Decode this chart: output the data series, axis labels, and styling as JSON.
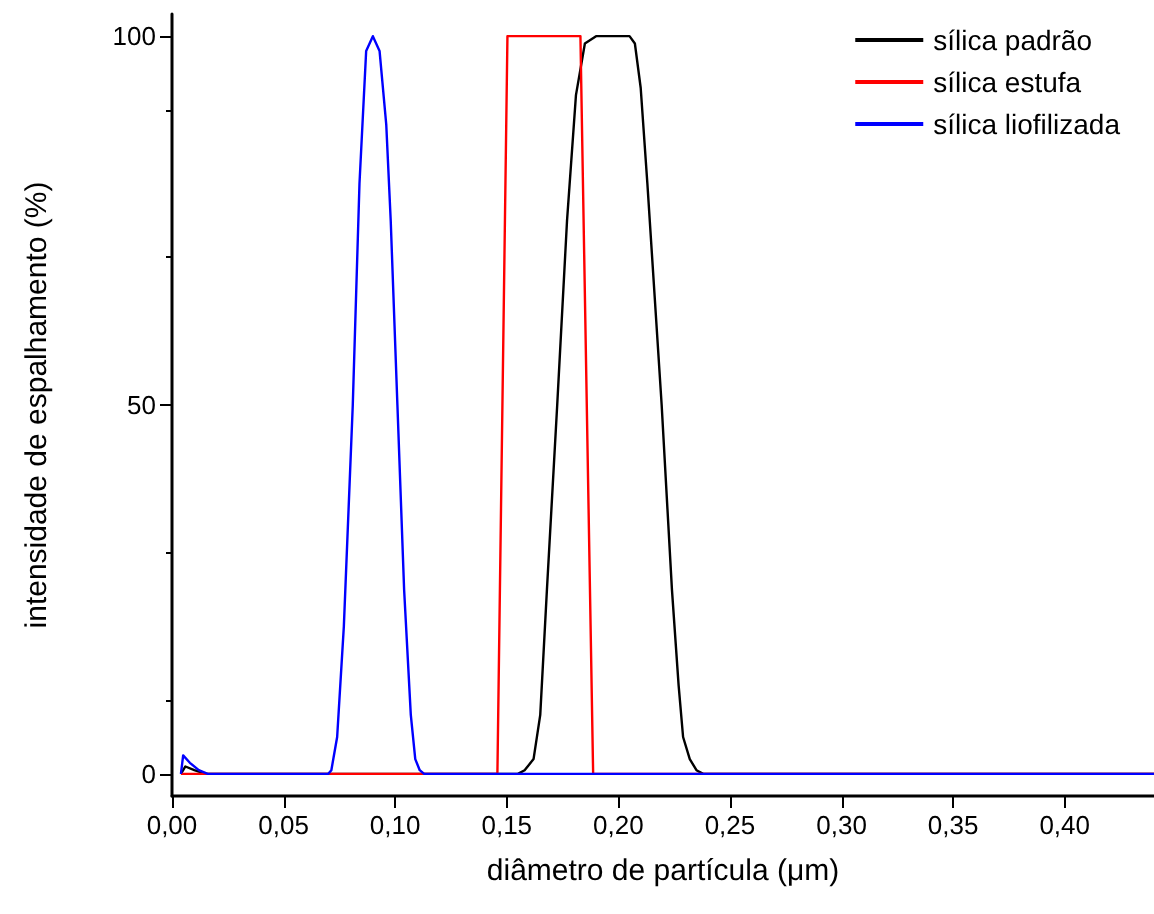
{
  "chart_data": {
    "type": "line",
    "xlabel": "diâmetro de partícula (μm)",
    "ylabel": "intensidade de espalhamento (%)",
    "xlim": [
      0,
      0.44
    ],
    "xticks": [
      {
        "value": 0,
        "label": "0,00"
      },
      {
        "value": 0.05,
        "label": "0,05"
      },
      {
        "value": 0.1,
        "label": "0,10"
      },
      {
        "value": 0.15,
        "label": "0,15"
      },
      {
        "value": 0.2,
        "label": "0,20"
      },
      {
        "value": 0.25,
        "label": "0,25"
      },
      {
        "value": 0.3,
        "label": "0,30"
      },
      {
        "value": 0.35,
        "label": "0,35"
      },
      {
        "value": 0.4,
        "label": "0,40"
      }
    ],
    "ylim": [
      -3,
      103
    ],
    "yticks": [
      0,
      50,
      100
    ],
    "grid": false,
    "legend": "top right",
    "marker": "none",
    "line_style": "solid",
    "series": [
      {
        "name": "sílica padrão",
        "color": "#000000",
        "x": [
          0.004,
          0.006,
          0.01,
          0.015,
          0.02,
          0.1,
          0.155,
          0.158,
          0.162,
          0.165,
          0.168,
          0.1726,
          0.177,
          0.181,
          0.185,
          0.19,
          0.195,
          0.2,
          0.205,
          0.2074,
          0.21,
          0.213,
          0.2194,
          0.224,
          0.227,
          0.229,
          0.232,
          0.235,
          0.238,
          0.25,
          0.44
        ],
        "values": [
          0,
          1,
          0.5,
          0,
          0,
          0,
          0,
          0.5,
          2,
          8,
          25,
          50,
          75,
          92,
          99,
          100,
          100,
          100,
          100,
          99,
          93,
          80,
          50,
          25,
          12,
          5,
          2,
          0.5,
          0,
          0,
          0
        ]
      },
      {
        "name": "sílica estufa",
        "color": "#ff0000",
        "x": [
          0.004,
          0.1458,
          0.1503,
          0.183,
          0.1887,
          0.44
        ],
        "values": [
          0,
          0,
          100,
          100,
          0,
          0
        ]
      },
      {
        "name": "sílica liofilizada",
        "color": "#0000ff",
        "x": [
          0.004,
          0.005,
          0.008,
          0.012,
          0.016,
          0.02,
          0.07,
          0.0714,
          0.074,
          0.077,
          0.081,
          0.084,
          0.087,
          0.09,
          0.093,
          0.096,
          0.098,
          0.101,
          0.104,
          0.107,
          0.109,
          0.111,
          0.113,
          0.44
        ],
        "values": [
          0,
          2.5,
          1.5,
          0.5,
          0,
          0,
          0,
          0.5,
          5,
          20,
          50,
          80,
          98,
          100,
          98,
          88,
          75,
          50,
          25,
          8,
          2,
          0.5,
          0,
          0
        ]
      }
    ]
  }
}
